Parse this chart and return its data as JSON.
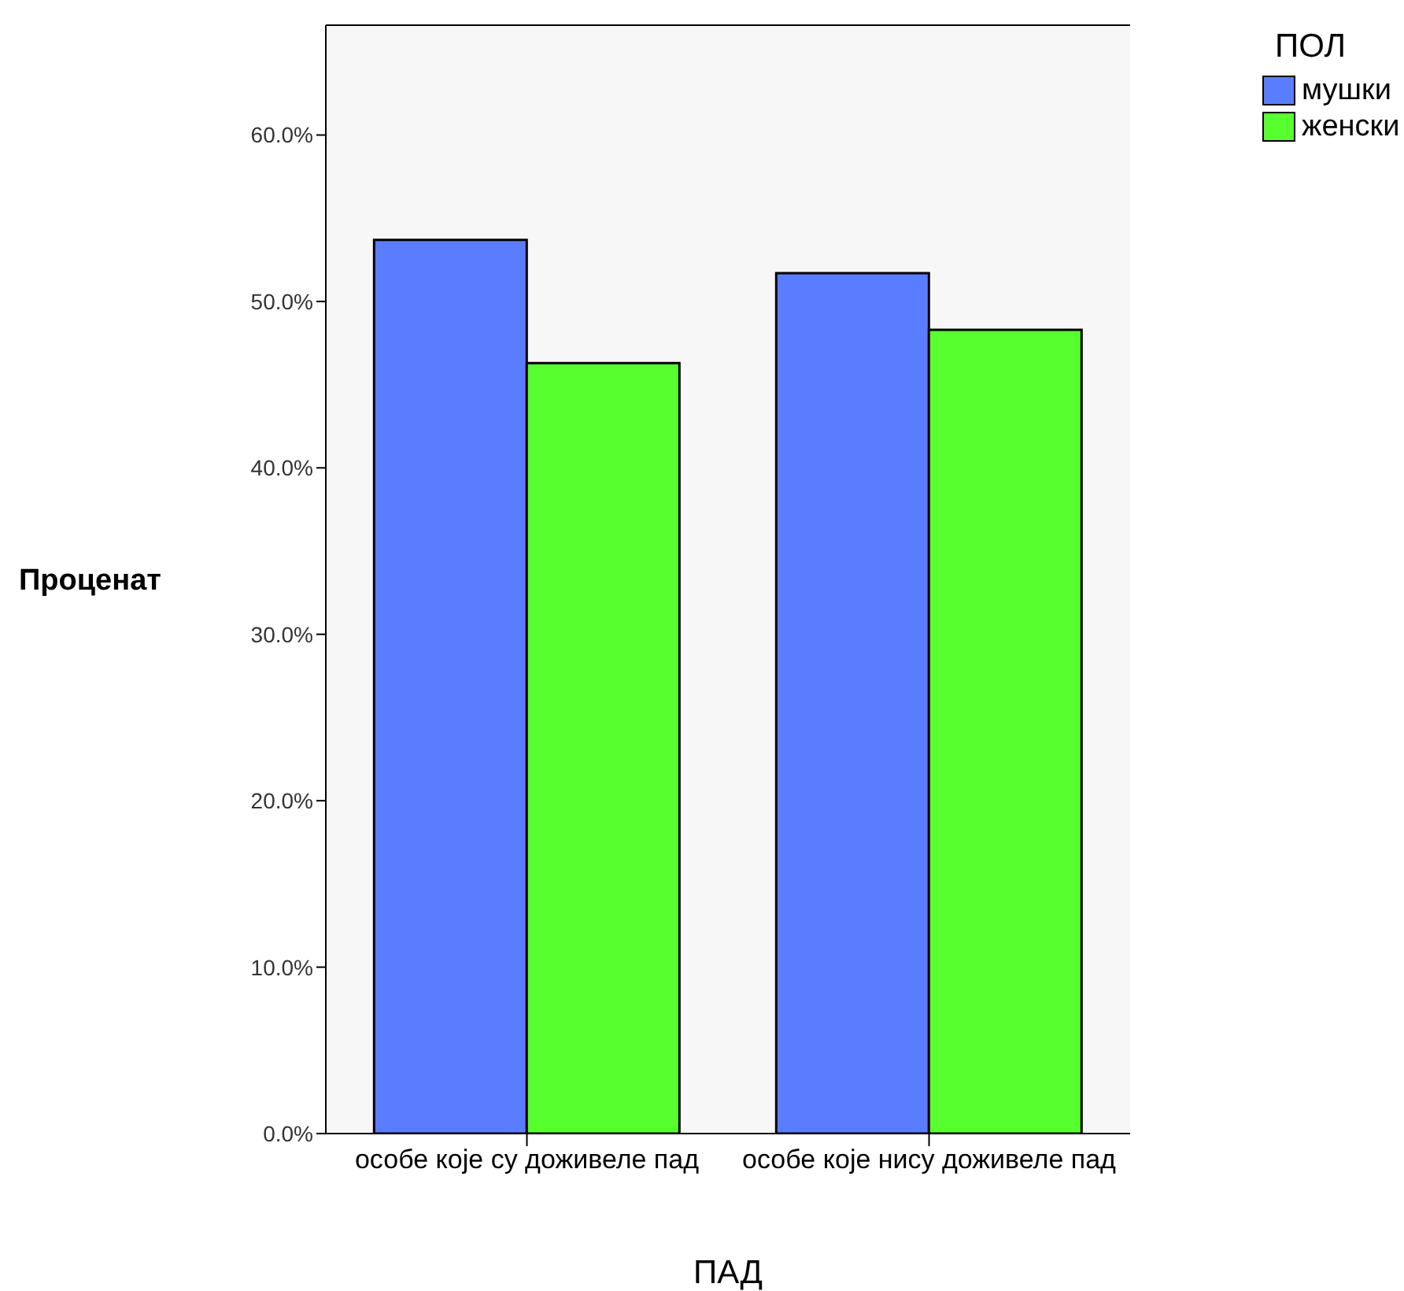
{
  "chart_data": {
    "type": "bar",
    "xlabel": "ПАД",
    "ylabel": "Проценат",
    "legend_title": "ПОЛ",
    "legend": "top right",
    "grid": false,
    "categories": [
      "особе које су доживеле пад",
      "особе које нису доживеле пад"
    ],
    "series": [
      {
        "name": "мушки",
        "color": "#5a7dff",
        "values": [
          53.7,
          51.7
        ]
      },
      {
        "name": "женски",
        "color": "#58ff2e",
        "values": [
          46.3,
          48.3
        ]
      }
    ],
    "ylim": [
      0,
      66.6
    ],
    "yticks": [
      {
        "value": 0,
        "label": "0.0%"
      },
      {
        "value": 10,
        "label": "10.0%"
      },
      {
        "value": 20,
        "label": "20.0%"
      },
      {
        "value": 30,
        "label": "30.0%"
      },
      {
        "value": 40,
        "label": "40.0%"
      },
      {
        "value": 50,
        "label": "50.0%"
      },
      {
        "value": 60,
        "label": "60.0%"
      }
    ]
  }
}
